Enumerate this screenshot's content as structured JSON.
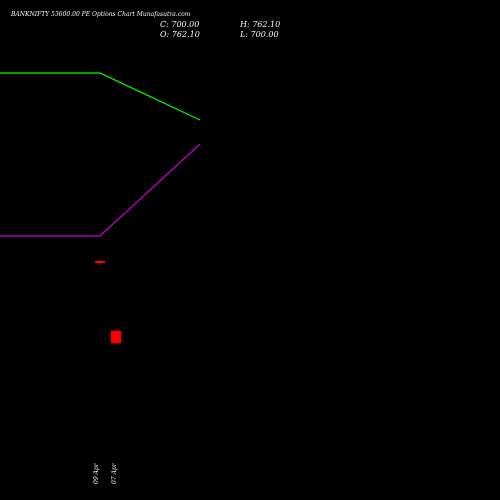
{
  "header": {
    "title": "BANKNIFTY 53600.00 PE Options Chart Munafasutra.com",
    "close_label": "C: 700.00",
    "open_label": "O: 762.10",
    "high_label": "H: 762.10",
    "low_label": "L: 700.00"
  },
  "colors": {
    "background": "#000000",
    "upper_line": "#00ff00",
    "lower_line": "#cc00cc",
    "candle_bear": "#ff0000",
    "text": "#ffffff"
  },
  "chart_data": {
    "type": "candlestick",
    "title": "BANKNIFTY 53600.00 PE Options Chart Munafasutra.com",
    "x_labels": [
      "09 Apr",
      "07 Apr"
    ],
    "lines": [
      {
        "color": "upper_line",
        "values": [
          null,
          null,
          1,
          1,
          0.75
        ]
      },
      {
        "color": "lower_line",
        "values": [
          null,
          null,
          0,
          0,
          0.55
        ]
      }
    ],
    "candles": [
      {
        "label": "09 Apr",
        "open": 762.1,
        "high": 762.1,
        "low": 700.0,
        "close": 700.0
      },
      {
        "label": "07 Apr",
        "open": 762.1,
        "high": 762.1,
        "low": 700.0,
        "close": 700.0
      }
    ],
    "grid": false,
    "legend": "none"
  }
}
